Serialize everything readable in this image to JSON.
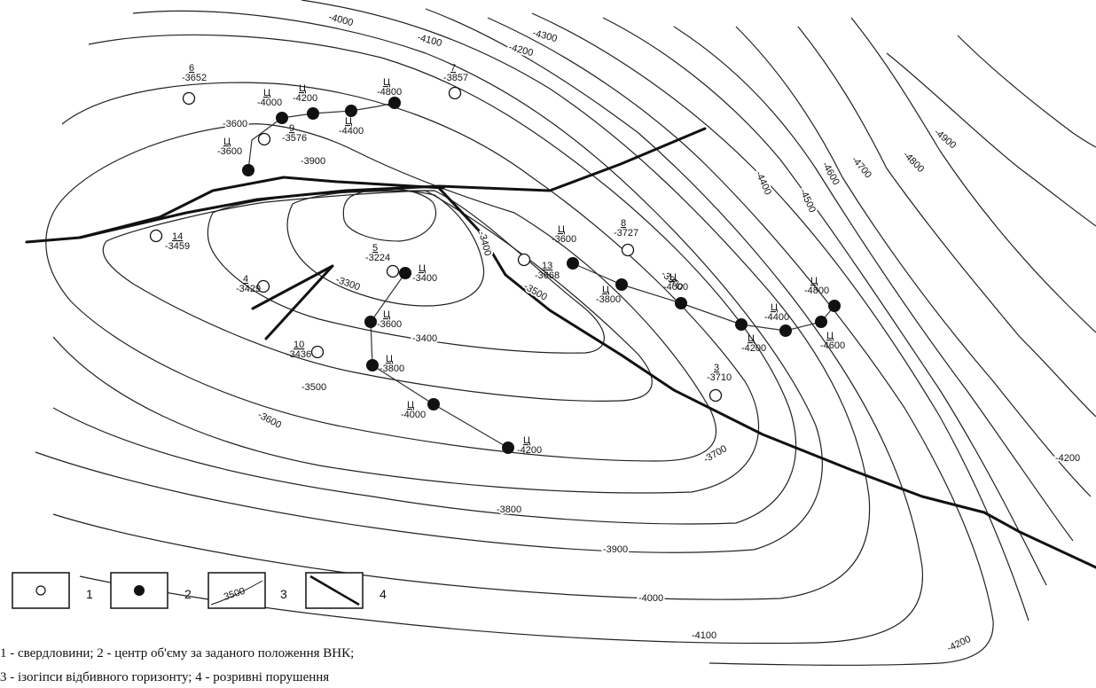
{
  "contour_labels": [
    "-3300",
    "-3400",
    "-3400",
    "-3500",
    "-3500",
    "-3600",
    "-3600",
    "-3700",
    "-3800",
    "-3900",
    "-3900",
    "-3900",
    "-4000",
    "-4000",
    "-4100",
    "-4100",
    "-4200",
    "-4200",
    "-4300",
    "-4400",
    "-4500",
    "-4600",
    "-4700",
    "-4800",
    "-4900",
    "-4200"
  ],
  "wells": [
    {
      "num": "6",
      "depth": "-3652"
    },
    {
      "num": "7",
      "depth": "-3857"
    },
    {
      "num": "9",
      "depth": "-3576"
    },
    {
      "num": "14",
      "depth": "-3459"
    },
    {
      "num": "4",
      "depth": "-3429"
    },
    {
      "num": "5",
      "depth": "-3224"
    },
    {
      "num": "10",
      "depth": "-3436"
    },
    {
      "num": "13",
      "depth": "-3668"
    },
    {
      "num": "8",
      "depth": "-3727"
    },
    {
      "num": "3",
      "depth": "-3710"
    }
  ],
  "centers_label": "Ц",
  "centers": [
    {
      "depth": "-3600"
    },
    {
      "depth": "-4000"
    },
    {
      "depth": "-4200"
    },
    {
      "depth": "-4400"
    },
    {
      "depth": "-4800"
    },
    {
      "depth": "-3400"
    },
    {
      "depth": "-3600"
    },
    {
      "depth": "-3800"
    },
    {
      "depth": "-4000"
    },
    {
      "depth": "-4200"
    },
    {
      "depth": "-3600"
    },
    {
      "depth": "-3800"
    },
    {
      "depth": "-4000"
    },
    {
      "depth": "-4200"
    },
    {
      "depth": "-4400"
    },
    {
      "depth": "-4600"
    },
    {
      "depth": "-4800"
    }
  ],
  "legend": {
    "item1": "1",
    "item2": "2",
    "item3": "3",
    "item3_sample": "3500",
    "item4": "4"
  },
  "caption": {
    "line1": "1 - свердловини; 2 - центр об'єму за заданого положення ВНК;",
    "line2": "3 - ізогіпси відбивного горизонту; 4 - розривні порушення"
  }
}
